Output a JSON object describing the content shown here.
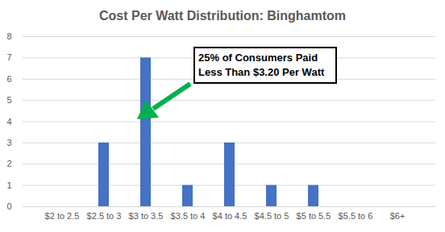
{
  "chart_data": {
    "type": "bar",
    "title": "Cost Per Watt Distribution: Binghamtom",
    "categories": [
      "$2 to 2.5",
      "$2.5 to 3",
      "$3 to 3.5",
      "$3.5 to 4",
      "$4 to 4.5",
      "$4.5 to 5",
      "$5 to 5.5",
      "$5.5 to 6",
      "$6+"
    ],
    "values": [
      0,
      3,
      7,
      1,
      3,
      1,
      1,
      0,
      0
    ],
    "color": "#4472c4",
    "ylim": [
      0,
      8
    ],
    "yticks": [
      0,
      1,
      2,
      3,
      4,
      5,
      6,
      7,
      8
    ],
    "grid": true,
    "annotation": "25% of Consumers Paid Less Than $3.20 Per Watt"
  }
}
